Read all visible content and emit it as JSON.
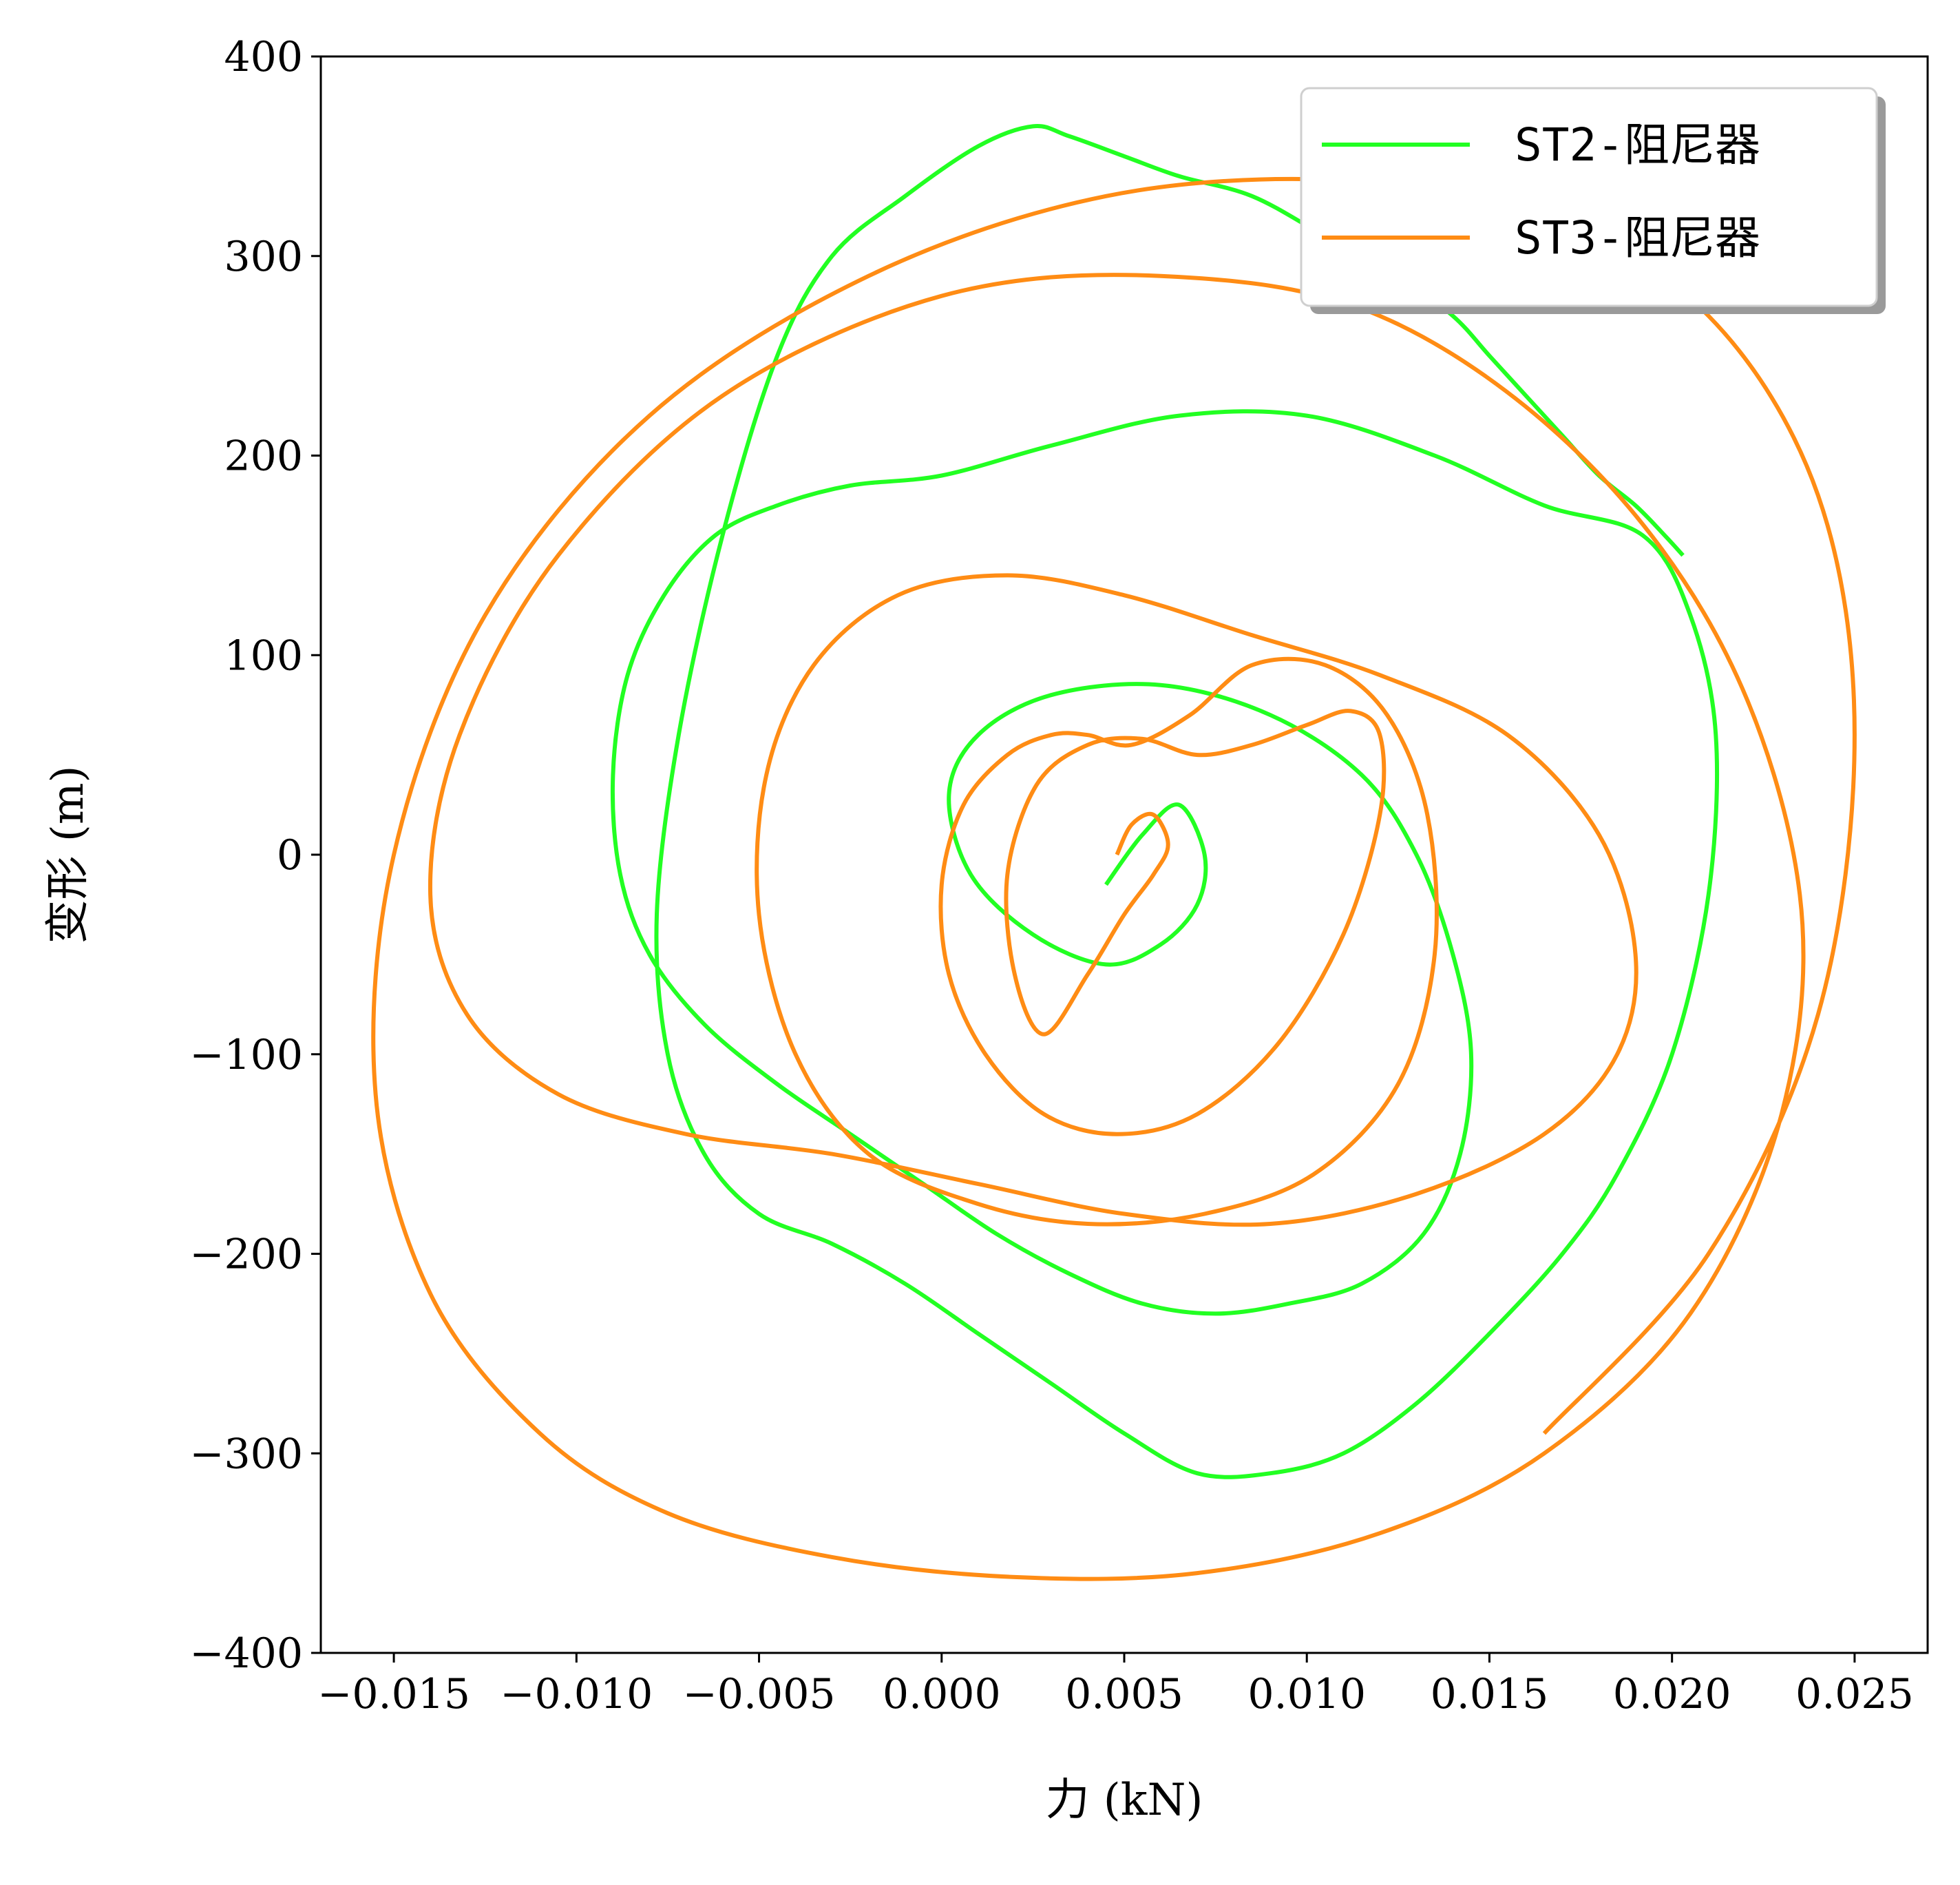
{
  "chart_data": {
    "type": "line",
    "title": "",
    "xlabel": "力 (kN)",
    "ylabel": "变形 (m)",
    "xlim": [
      -0.017,
      0.027
    ],
    "ylim": [
      -400,
      400
    ],
    "xticks": [
      -0.015,
      -0.01,
      -0.005,
      0.0,
      0.005,
      0.01,
      0.015,
      0.02,
      0.025
    ],
    "xtick_labels": [
      "−0.015",
      "−0.010",
      "−0.005",
      "0.000",
      "0.005",
      "0.010",
      "0.015",
      "0.020",
      "0.025"
    ],
    "yticks": [
      -400,
      -300,
      -200,
      -100,
      0,
      100,
      200,
      300,
      400
    ],
    "ytick_labels": [
      "−400",
      "−300",
      "−200",
      "−100",
      "0",
      "100",
      "200",
      "300",
      "400"
    ],
    "grid": false,
    "legend_position": "upper right",
    "series": [
      {
        "name": "ST2-阻尼器",
        "color": "#22ff22",
        "x": [
          0.0045,
          0.0055,
          0.0065,
          0.0072,
          0.007,
          0.006,
          0.0045,
          0.0025,
          0.0008,
          0.0002,
          0.001,
          0.003,
          0.006,
          0.009,
          0.0115,
          0.013,
          0.014,
          0.0145,
          0.0142,
          0.0132,
          0.0115,
          0.0095,
          0.0075,
          0.0055,
          0.0035,
          0.0015,
          -0.0005,
          -0.0025,
          -0.0045,
          -0.0065,
          -0.008,
          -0.0088,
          -0.009,
          -0.0086,
          -0.0076,
          -0.0062,
          -0.0045,
          -0.0025,
          0.0,
          0.003,
          0.0065,
          0.01,
          0.0135,
          0.0165,
          0.0192,
          0.0205,
          0.0212,
          0.021,
          0.02,
          0.0185,
          0.017,
          0.015,
          0.013,
          0.011,
          0.009,
          0.007,
          0.005,
          0.003,
          0.001,
          -0.001,
          -0.003,
          -0.005,
          -0.0065,
          -0.0075,
          -0.0078,
          -0.0072,
          -0.006,
          -0.0045,
          -0.003,
          -0.001,
          0.001,
          0.0025,
          0.0035,
          0.005,
          0.0065,
          0.0085,
          0.0105,
          0.0125,
          0.014,
          0.015,
          0.016,
          0.017,
          0.018,
          0.019,
          0.0198,
          0.0203
        ],
        "y": [
          -15,
          10,
          25,
          0,
          -25,
          -45,
          -55,
          -40,
          -10,
          30,
          60,
          80,
          85,
          70,
          40,
          0,
          -50,
          -100,
          -150,
          -190,
          -215,
          -225,
          -230,
          -225,
          -210,
          -190,
          -165,
          -140,
          -115,
          -85,
          -50,
          -10,
          40,
          90,
          130,
          160,
          175,
          185,
          190,
          205,
          220,
          220,
          200,
          175,
          160,
          120,
          60,
          -20,
          -100,
          -160,
          -200,
          -240,
          -275,
          -300,
          -310,
          -310,
          -290,
          -265,
          -240,
          -215,
          -195,
          -180,
          -150,
          -100,
          -30,
          60,
          160,
          250,
          300,
          330,
          355,
          365,
          360,
          350,
          340,
          330,
          310,
          290,
          270,
          250,
          230,
          210,
          190,
          175,
          160,
          150
        ]
      },
      {
        "name": "ST3-阻尼器",
        "color": "#ff8c14",
        "x": [
          0.0048,
          0.0052,
          0.0058,
          0.0062,
          0.0058,
          0.005,
          0.004,
          0.0028,
          0.002,
          0.0018,
          0.0026,
          0.004,
          0.0055,
          0.007,
          0.0085,
          0.01,
          0.0112,
          0.012,
          0.012,
          0.011,
          0.0092,
          0.007,
          0.0048,
          0.0028,
          0.0012,
          0.0002,
          0.0,
          0.0006,
          0.0018,
          0.003,
          0.004,
          0.0052,
          0.0068,
          0.0085,
          0.0105,
          0.0122,
          0.0133,
          0.0135,
          0.0125,
          0.0102,
          0.0072,
          0.004,
          0.001,
          -0.002,
          -0.004,
          -0.005,
          -0.0048,
          -0.0035,
          -0.0012,
          0.0018,
          0.005,
          0.0085,
          0.012,
          0.0155,
          0.018,
          0.019,
          0.0185,
          0.0165,
          0.013,
          0.009,
          0.005,
          0.001,
          -0.003,
          -0.007,
          -0.0105,
          -0.013,
          -0.014,
          -0.0132,
          -0.0105,
          -0.006,
          0.0,
          0.006,
          0.012,
          0.0175,
          0.0215,
          0.0235,
          0.023,
          0.0205,
          0.0165,
          0.012,
          0.007,
          0.002,
          -0.003,
          -0.0075,
          -0.011,
          -0.014,
          -0.0155,
          -0.015,
          -0.0125,
          -0.008,
          -0.002,
          0.0045,
          0.011,
          0.0165,
          0.021,
          0.024,
          0.025,
          0.024,
          0.021,
          0.0165
        ],
        "y": [
          0,
          15,
          20,
          5,
          -10,
          -30,
          -60,
          -90,
          -60,
          -10,
          35,
          55,
          58,
          50,
          55,
          65,
          72,
          60,
          20,
          -40,
          -95,
          -130,
          -140,
          -130,
          -100,
          -60,
          -15,
          25,
          50,
          60,
          60,
          55,
          70,
          95,
          95,
          70,
          20,
          -50,
          -115,
          -160,
          -180,
          -185,
          -175,
          -150,
          -100,
          -30,
          40,
          95,
          130,
          140,
          130,
          110,
          90,
          60,
          10,
          -50,
          -100,
          -140,
          -170,
          -185,
          -180,
          -165,
          -150,
          -140,
          -120,
          -80,
          -20,
          60,
          150,
          230,
          280,
          290,
          270,
          200,
          100,
          -20,
          -130,
          -230,
          -300,
          -340,
          -360,
          -362,
          -352,
          -330,
          -290,
          -220,
          -120,
          0,
          120,
          220,
          290,
          330,
          338,
          320,
          270,
          180,
          60,
          -80,
          -200,
          -290
        ]
      }
    ]
  }
}
